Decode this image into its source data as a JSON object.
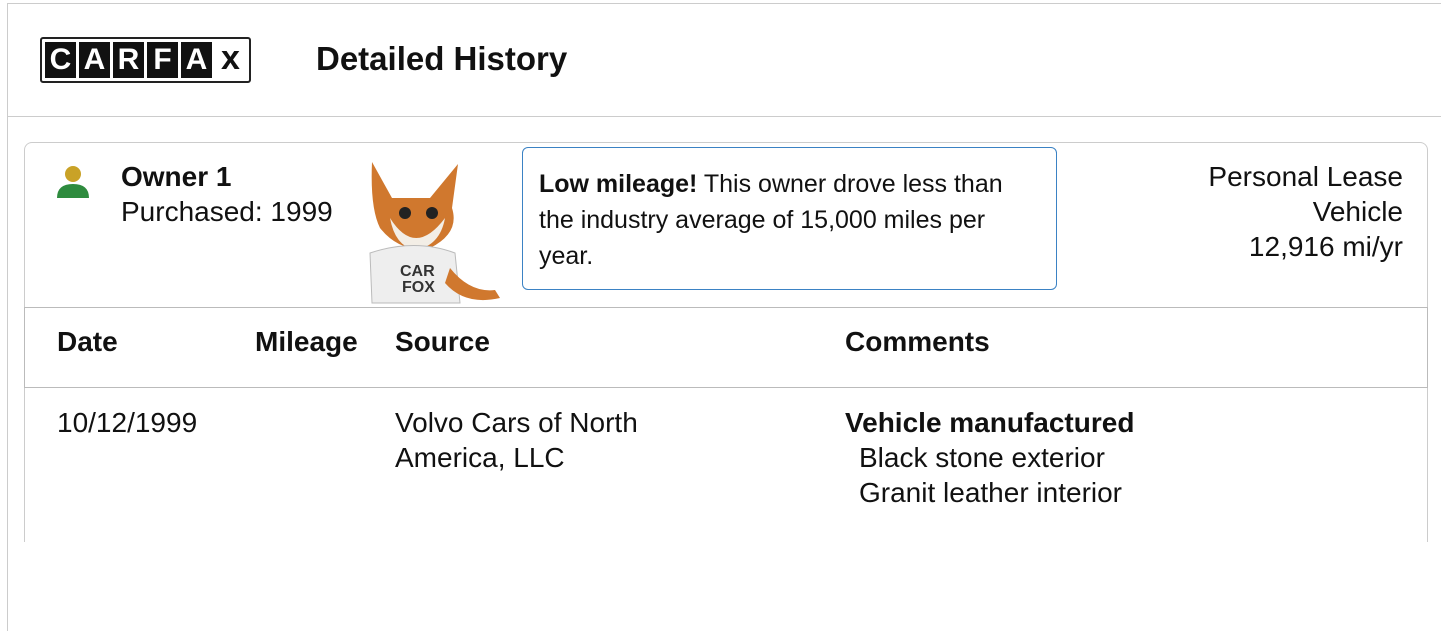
{
  "header": {
    "logo_letters": [
      "C",
      "A",
      "R",
      "F",
      "A",
      "x"
    ],
    "title": "Detailed History"
  },
  "owner": {
    "name": "Owner 1",
    "purchased": "Purchased: 1999",
    "type": "Personal Lease Vehicle",
    "mileage_rate": "12,916 mi/yr"
  },
  "callout": {
    "highlight": "Low mileage!",
    "text": "This owner drove less than the industry average of 15,000 miles per year."
  },
  "table": {
    "headers": [
      "Date",
      "Mileage",
      "Source",
      "Comments"
    ],
    "rows": [
      {
        "date": "10/12/1999",
        "source": "Volvo Cars of North America, LLC",
        "comment_title": "Vehicle manufactured",
        "comment_details": [
          "Black stone exterior",
          "Granit leather interior"
        ]
      }
    ]
  }
}
